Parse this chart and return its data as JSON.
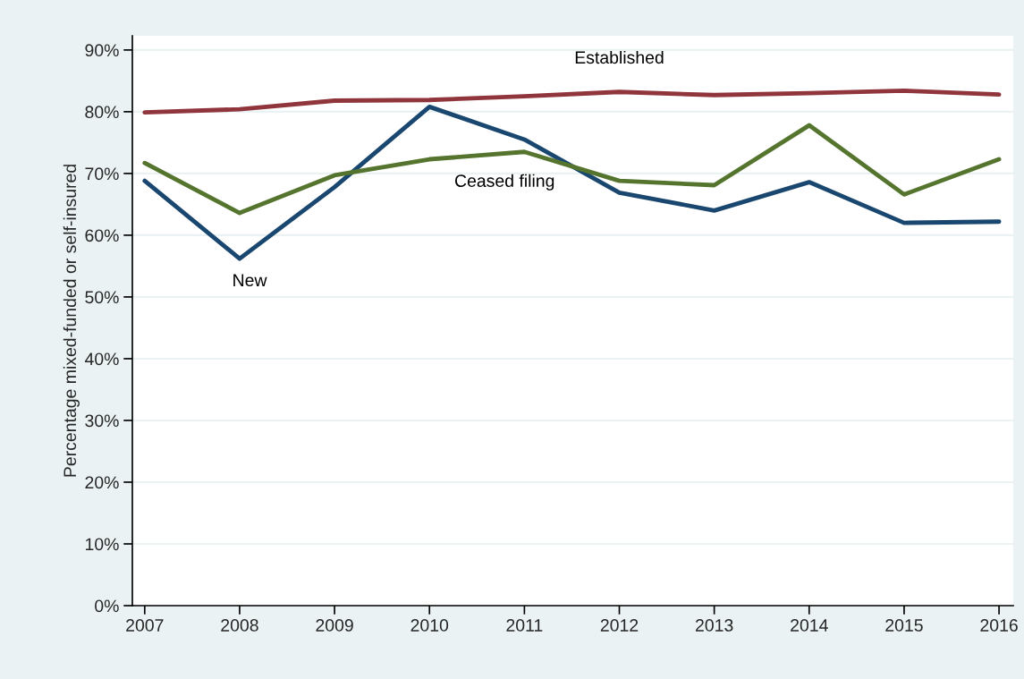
{
  "chart_data": {
    "type": "line",
    "ylabel": "Percentage mixed-funded or self-insured",
    "x": [
      2007,
      2008,
      2009,
      2010,
      2011,
      2012,
      2013,
      2014,
      2015,
      2016
    ],
    "series": [
      {
        "name": "Established",
        "color": "#90353b",
        "values": [
          79.9,
          80.4,
          81.8,
          81.9,
          82.5,
          83.2,
          82.7,
          83.0,
          83.4,
          82.8
        ]
      },
      {
        "name": "New",
        "color": "#1a476f",
        "values": [
          68.8,
          56.2,
          67.8,
          80.8,
          75.5,
          66.9,
          64.0,
          68.6,
          62.0,
          62.2
        ]
      },
      {
        "name": "Ceased filing",
        "color": "#55752f",
        "values": [
          71.7,
          63.6,
          69.7,
          72.3,
          73.5,
          68.8,
          68.1,
          77.8,
          66.6,
          72.3
        ]
      }
    ],
    "xlim": [
      2006.87,
      2016.15
    ],
    "ylim": [
      0,
      92.3
    ],
    "xticks": [
      2007,
      2008,
      2009,
      2010,
      2011,
      2012,
      2013,
      2014,
      2015,
      2016
    ],
    "yticks": [
      {
        "value": 0,
        "label": "0%"
      },
      {
        "value": 10,
        "label": "10%"
      },
      {
        "value": 20,
        "label": "20%"
      },
      {
        "value": 30,
        "label": "30%"
      },
      {
        "value": 40,
        "label": "40%"
      },
      {
        "value": 50,
        "label": "50%"
      },
      {
        "value": 60,
        "label": "60%"
      },
      {
        "value": 70,
        "label": "70%"
      },
      {
        "value": 80,
        "label": "80%"
      },
      {
        "value": 90,
        "label": "90%"
      }
    ],
    "grid": "y",
    "legend": false,
    "marker": "none",
    "line_style": "solid"
  }
}
